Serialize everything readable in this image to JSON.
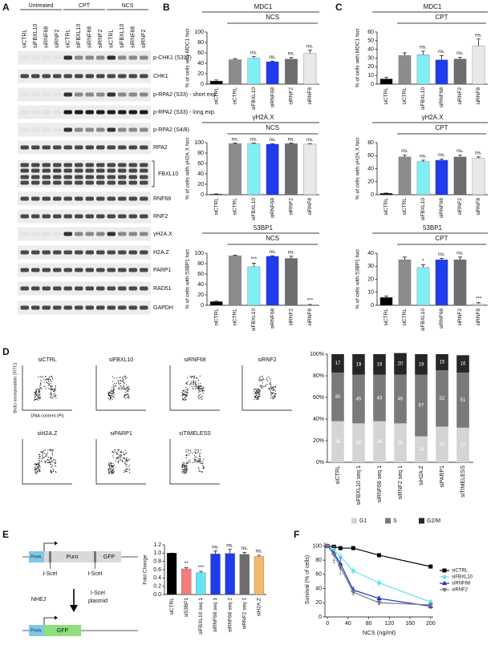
{
  "panel_labels": [
    "A",
    "B",
    "C",
    "D",
    "E",
    "F"
  ],
  "western_blot": {
    "groups": [
      "Untreated",
      "CPT",
      "NCS"
    ],
    "lanes": [
      "siCTRL",
      "siFBXL10",
      "siRNF68",
      "siRNF2"
    ],
    "rows": [
      "p-CHK1 (S317)",
      "CHK1",
      "p-RPA2 (S33) - short exp.",
      "p-RPA2 (S33) - long exp.",
      "p-RPA2 (S4/8)",
      "RPA2",
      "FBXL10",
      "RNF68",
      "RNF2",
      "γH2A.X",
      "H2A.Z",
      "PARP1",
      "RAD51",
      "GAPDH"
    ]
  },
  "flow_cytometry": {
    "y_label": "BrdU incorporation (FITC)",
    "x_label": "DNA content (PI)",
    "samples": [
      "siCTRL",
      "siFBXL10",
      "siRNF68",
      "siRNF2",
      "siH2A.Z",
      "siPARP1",
      "siTIMELESS"
    ]
  },
  "reporter_diagram": {
    "promoter": "Prom.",
    "cassette": "Puro",
    "reporter": "GFP",
    "sites": [
      "I-SceI",
      "I-SceI"
    ],
    "repair": "NHEJ",
    "enzyme": [
      "I-SceI",
      "plasmid"
    ],
    "product_promoter": "Prom.",
    "product_reporter": "GFP"
  },
  "chart_data": [
    {
      "type": "bar",
      "title": "MDC1",
      "subtitle": "NCS",
      "y_label": "% of cells with MDC1 foci",
      "categories": [
        "siCTRL",
        "siCTRL",
        "siFBXL10",
        "siRNF68",
        "siRNF2",
        "siRNF8"
      ],
      "values": [
        6,
        47,
        50,
        43,
        48,
        59
      ],
      "errors": [
        2,
        2,
        3,
        1,
        3,
        6
      ],
      "annotations": [
        null,
        null,
        "ns.",
        "ns.",
        "ns.",
        "ns."
      ],
      "colors": [
        "#000000",
        "#8c8c8c",
        "#80eef5",
        "#1f3bea",
        "#6e6e6e",
        "#e8e8e8"
      ],
      "ylim": [
        0,
        100
      ],
      "yticks": [
        0,
        20,
        40,
        60,
        80,
        100
      ]
    },
    {
      "type": "bar",
      "title": "γH2A.X",
      "subtitle": "NCS",
      "y_label": "% of cells with γH2A.X foci",
      "categories": [
        "siCTRL",
        "siCTRL",
        "siFBXL10",
        "siRNF68",
        "siRNF2",
        "siRNF8"
      ],
      "values": [
        1,
        98,
        98,
        97,
        98,
        97
      ],
      "errors": [
        0.5,
        1,
        1,
        1,
        1,
        1
      ],
      "annotations": [
        null,
        "ns.",
        "ns.",
        "ns.",
        "ns.",
        "ns."
      ],
      "colors": [
        "#000000",
        "#8c8c8c",
        "#80eef5",
        "#1f3bea",
        "#6e6e6e",
        "#e8e8e8"
      ],
      "ylim": [
        0,
        100
      ],
      "yticks": [
        0,
        20,
        40,
        60,
        80,
        100
      ]
    },
    {
      "type": "bar",
      "title": "53BP1",
      "subtitle": "NCS",
      "y_label": "% of cells with 53BP1 foci",
      "categories": [
        "siCTRL",
        "siCTRL",
        "siFBXL10",
        "siRNF68",
        "siRNF2",
        "siRNF8"
      ],
      "values": [
        7,
        95,
        74,
        94,
        90,
        1
      ],
      "errors": [
        1,
        1,
        7,
        1,
        4,
        0.5
      ],
      "annotations": [
        null,
        null,
        "***",
        "ns.",
        "ns.",
        "***"
      ],
      "colors": [
        "#000000",
        "#8c8c8c",
        "#80eef5",
        "#1f3bea",
        "#6e6e6e",
        "#e8e8e8"
      ],
      "ylim": [
        0,
        100
      ],
      "yticks": [
        0,
        20,
        40,
        60,
        80,
        100
      ]
    },
    {
      "type": "bar",
      "title": "MDC1",
      "subtitle": "CPT",
      "y_label": "% of cells with MDC1 foci",
      "categories": [
        "siCTRL",
        "siCTRL",
        "siFBXL10",
        "siRNF68",
        "siRNF2",
        "siRNF8"
      ],
      "values": [
        6,
        33,
        34,
        28,
        29,
        44
      ],
      "errors": [
        2,
        3,
        4,
        5,
        2,
        8
      ],
      "annotations": [
        null,
        null,
        "ns.",
        "ns.",
        "ns.",
        "ns."
      ],
      "colors": [
        "#000000",
        "#8c8c8c",
        "#80eef5",
        "#1f3bea",
        "#6e6e6e",
        "#e8e8e8"
      ],
      "ylim": [
        0,
        60
      ],
      "yticks": [
        0,
        10,
        20,
        30,
        40,
        50,
        60
      ]
    },
    {
      "type": "bar",
      "title": "γH2A.X",
      "subtitle": "CPT",
      "y_label": "% of cells with γH2A.X foci",
      "categories": [
        "siCTRL",
        "siCTRL",
        "siFBXL10",
        "siRNF68",
        "siRNF2",
        "siRNF8"
      ],
      "values": [
        2,
        58,
        51,
        53,
        58,
        56
      ],
      "errors": [
        0.5,
        3,
        2,
        2,
        3,
        2
      ],
      "annotations": [
        null,
        "ns.",
        "ns.",
        "ns.",
        "ns.",
        "ns."
      ],
      "colors": [
        "#000000",
        "#8c8c8c",
        "#80eef5",
        "#1f3bea",
        "#6e6e6e",
        "#e8e8e8"
      ],
      "ylim": [
        0,
        80
      ],
      "yticks": [
        0,
        20,
        40,
        60,
        80
      ]
    },
    {
      "type": "bar",
      "title": "53BP1",
      "subtitle": "CPT",
      "y_label": "% of cells with 53BP1 foci",
      "categories": [
        "siCTRL",
        "siCTRL",
        "siFBXL10",
        "siRNF68",
        "siRNF2",
        "siRNF8"
      ],
      "values": [
        6,
        35,
        29,
        35,
        35,
        1
      ],
      "errors": [
        1,
        2,
        2,
        1,
        2,
        1
      ],
      "annotations": [
        null,
        null,
        "*",
        "ns.",
        "ns.",
        "***"
      ],
      "colors": [
        "#000000",
        "#8c8c8c",
        "#80eef5",
        "#1f3bea",
        "#6e6e6e",
        "#e8e8e8"
      ],
      "ylim": [
        0,
        40
      ],
      "yticks": [
        0,
        10,
        20,
        30,
        40
      ]
    },
    {
      "type": "stacked_bar",
      "categories": [
        "siCTRL",
        "siFBXL10 seq 1",
        "siRNF68 seq 1",
        "siRNF2 seq 1",
        "siH2A.Z",
        "siPARP1",
        "siTIMELESS"
      ],
      "series": [
        {
          "name": "G1",
          "color": "#d4d4d4",
          "values": [
            38,
            36,
            38,
            36,
            24,
            33,
            32
          ]
        },
        {
          "name": "S",
          "color": "#7a7a7a",
          "values": [
            45,
            45,
            43,
            45,
            57,
            52,
            51
          ]
        },
        {
          "name": "G2/M",
          "color": "#262626",
          "values": [
            17,
            19,
            19,
            20,
            19,
            15,
            16
          ]
        }
      ],
      "ylim": [
        0,
        100
      ],
      "yticks": [
        {
          "value": 0,
          "label": "0%"
        },
        {
          "value": 20,
          "label": "20%"
        },
        {
          "value": 40,
          "label": "40%"
        },
        {
          "value": 60,
          "label": "60%"
        },
        {
          "value": 80,
          "label": "80%"
        },
        {
          "value": 100,
          "label": "100%"
        }
      ]
    },
    {
      "type": "bar",
      "y_label": "Fold Change",
      "categories": [
        "siCTRL",
        "si53BP1",
        "siFBXL10 seq 1",
        "siRNF68 seq 1",
        "siRNF68 seq 2",
        "siRNF2 seq 1",
        "siH2A.Z"
      ],
      "values": [
        1.0,
        0.62,
        0.53,
        0.98,
        0.99,
        0.97,
        0.92
      ],
      "errors": [
        0,
        0.03,
        0.03,
        0.07,
        0.1,
        0.05,
        0.03
      ],
      "annotations": [
        null,
        "**",
        "***",
        "ns.",
        "ns.",
        "ns.",
        "ns."
      ],
      "colors": [
        "#000000",
        "#f47c7c",
        "#66e3f2",
        "#1f3bea",
        "#1f3bea",
        "#6e6e6e",
        "#f5b96b"
      ],
      "ylim": [
        0,
        1.2
      ],
      "yticks": [
        {
          "value": 0,
          "label": "0.0"
        },
        0.2,
        0.4,
        0.6,
        0.8,
        {
          "value": 1,
          "label": "1.0"
        },
        1.2
      ]
    },
    {
      "type": "line",
      "x_label": "NCS (ng/ml)",
      "y_label": "Survival (% of cells)",
      "x": [
        0,
        12.5,
        25,
        50,
        100,
        200
      ],
      "series": [
        {
          "name": "siCTRL",
          "color": "#000000",
          "marker": "square",
          "values": [
            100,
            99,
            97,
            97,
            87,
            71
          ],
          "errors": [
            0,
            1,
            2,
            1,
            2,
            1
          ]
        },
        {
          "name": "siFBXL10",
          "color": "#66e3f2",
          "marker": "circle",
          "values": [
            100,
            95,
            85,
            65,
            48,
            21
          ],
          "errors": [
            0,
            5,
            5,
            4,
            4,
            3
          ]
        },
        {
          "name": "siRNF68",
          "color": "#1a2fd6",
          "marker": "triangle",
          "values": [
            100,
            90,
            75,
            38,
            26,
            15
          ],
          "errors": [
            0,
            10,
            8,
            4,
            3,
            3
          ]
        },
        {
          "name": "siRNF2",
          "color": "#7a7a7a",
          "marker": "triangle-down",
          "values": [
            100,
            88,
            70,
            35,
            20,
            17
          ],
          "errors": [
            0,
            12,
            10,
            4,
            3,
            3
          ]
        }
      ],
      "xlim": [
        -5,
        205
      ],
      "xticks": [
        0,
        40,
        80,
        120,
        160,
        200
      ],
      "ylim": [
        0,
        105
      ],
      "yticks": [
        0,
        20,
        40,
        60,
        80,
        100
      ]
    }
  ]
}
